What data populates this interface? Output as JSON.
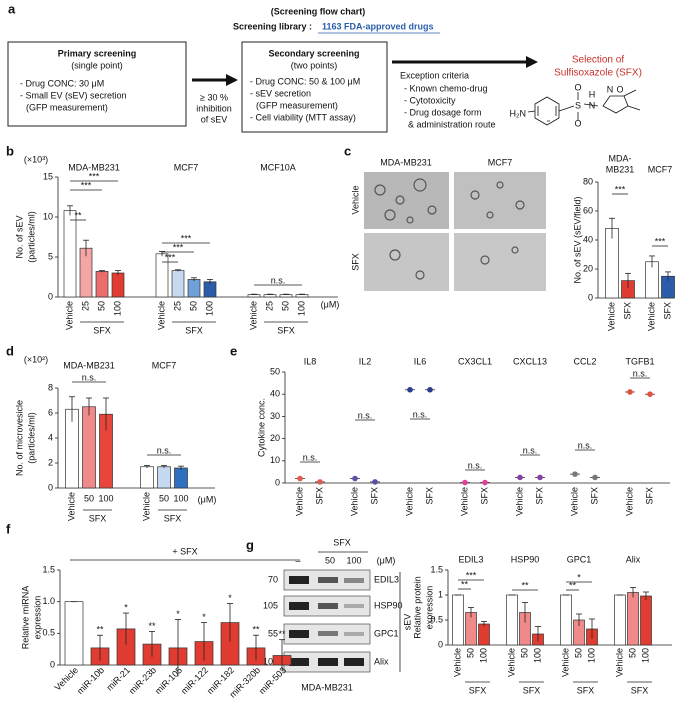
{
  "flowchart": {
    "panel": "a",
    "header": "(Screening flow chart)",
    "library_label": "Screening library :",
    "library": "1163 FDA-approved drugs",
    "primary": {
      "title": "Primary screening",
      "subtitle": "(single point)",
      "lines": [
        "- Drug CONC: 30 μM",
        "- Small EV (sEV) secretion",
        "(GFP measurement)"
      ]
    },
    "arrow1": [
      "≥ 30 %",
      "inhibition",
      "of sEV"
    ],
    "secondary": {
      "title": "Secondary screening",
      "subtitle": "(two points)",
      "lines": [
        "- Drug CONC: 50 & 100 μM",
        "- sEV secretion",
        "(GFP measurement)",
        "- Cell viability (MTT assay)"
      ]
    },
    "exception": [
      "Exception criteria",
      "- Known chemo-drug",
      "- Cytotoxicity",
      "- Drug dosage form",
      "& administration route"
    ],
    "selection": [
      "Selection of",
      "Sulfisoxazole (SFX)"
    ],
    "molecule_atoms": [
      "H₂N",
      "S",
      "O",
      "O",
      "H",
      "N",
      "N",
      "O"
    ]
  },
  "micrographs": {
    "panel": "c",
    "columns": [
      "MDA-MB231",
      "MCF7"
    ],
    "rows": [
      "Vehicle",
      "SFX"
    ]
  },
  "blot": {
    "panel": "g",
    "treatment": "SFX",
    "doses": [
      "–",
      "50",
      "100"
    ],
    "unit": "(μM)",
    "markers": [
      "70",
      "105",
      "55",
      "100"
    ],
    "proteins": [
      "EDIL3",
      "HSP90",
      "GPC1",
      "Alix"
    ],
    "fraction": "sEV",
    "cell_line": "MDA-MB231"
  },
  "chart_data": [
    {
      "type": "bar",
      "panel": "b",
      "scale_label": "(×10³)",
      "ylabel": [
        "No. of sEV",
        "(particles/ml)"
      ],
      "groups": [
        "MDA-MB231",
        "MCF7",
        "MCF10A"
      ],
      "brackets": [
        "SFX",
        "SFX",
        "SFX"
      ],
      "unit": "(μM)",
      "categories": [
        "Vehicle",
        "25",
        "50",
        "100",
        "Vehicle",
        "25",
        "50",
        "100",
        "Vehicle",
        "25",
        "50",
        "100"
      ],
      "values": [
        10.8,
        6.1,
        3.2,
        3.0,
        5.4,
        3.3,
        2.2,
        1.9,
        0.3,
        0.3,
        0.3,
        0.3
      ],
      "errors": [
        0.6,
        1.0,
        0.1,
        0.3,
        0.3,
        0.1,
        0.2,
        0.3,
        0.05,
        0.05,
        0.05,
        0.05
      ],
      "colors": [
        "#ffffff",
        "#f4a6a6",
        "#ec6d6d",
        "#e03c31",
        "#ffffff",
        "#c5d9f1",
        "#6fa0d8",
        "#2a5caa",
        "#ffffff",
        "#ffffff",
        "#ffffff",
        "#ffffff"
      ],
      "ylim": [
        0,
        15
      ],
      "yticks": [
        0,
        5,
        10,
        15
      ],
      "annotations": [
        "**",
        "***",
        "***",
        "***",
        "***",
        "***",
        "n.s."
      ]
    },
    {
      "type": "bar",
      "panel": "c",
      "ylabel": [
        "No. of sEV (sEV/field)"
      ],
      "groups": [
        [
          "MDA-",
          "MB231"
        ],
        [
          "MCF7"
        ]
      ],
      "categories": [
        "Vehicle",
        "SFX",
        "Vehicle",
        "SFX"
      ],
      "values": [
        48,
        12,
        25,
        15
      ],
      "errors": [
        7,
        5,
        4,
        3
      ],
      "colors": [
        "#ffffff",
        "#e03c31",
        "#ffffff",
        "#2a5caa"
      ],
      "ylim": [
        0,
        80
      ],
      "yticks": [
        0,
        20,
        40,
        60,
        80
      ],
      "annotations": [
        "***",
        "***"
      ]
    },
    {
      "type": "bar",
      "panel": "d",
      "scale_label": "(×10²)",
      "ylabel": [
        "No. of microvesicle",
        "(particles/ml)"
      ],
      "groups": [
        "MDA-MB231",
        "MCF7"
      ],
      "brackets": [
        "SFX",
        "SFX"
      ],
      "unit": "(μM)",
      "categories": [
        "Vehicle",
        "50",
        "100",
        "Vehicle",
        "50",
        "100"
      ],
      "values": [
        6.3,
        6.5,
        5.9,
        1.7,
        1.7,
        1.6
      ],
      "errors": [
        1.0,
        0.7,
        1.3,
        0.1,
        0.1,
        0.15
      ],
      "colors": [
        "#ffffff",
        "#f08a8a",
        "#e8463c",
        "#ffffff",
        "#c5d9f1",
        "#2f6fc0"
      ],
      "ylim": [
        0,
        8
      ],
      "yticks": [
        0,
        2,
        4,
        6,
        8
      ],
      "annotations": [
        "n.s.",
        "n.s."
      ]
    },
    {
      "type": "scatter",
      "panel": "e",
      "ylabel": [
        "Cytokine conc."
      ],
      "groups": [
        "IL8",
        "IL2",
        "IL6",
        "CX3CL1",
        "CXCL13",
        "CCL2",
        "TGFB1"
      ],
      "categories": [
        "Vehicle",
        "SFX",
        "Vehicle",
        "SFX",
        "Vehicle",
        "SFX",
        "Vehicle",
        "SFX",
        "Vehicle",
        "SFX",
        "Vehicle",
        "SFX",
        "Vehicle",
        "SFX"
      ],
      "values": [
        2,
        0.5,
        2,
        0.5,
        42,
        42,
        0.2,
        0.2,
        2.5,
        2.5,
        4,
        2.5,
        41,
        40
      ],
      "colors": [
        "#e05a4f",
        "#5a4fa8",
        "#2a3f8f",
        "#e0409a",
        "#8a3fa8",
        "#777777",
        "#e0503c"
      ],
      "ylim": [
        0,
        50
      ],
      "yticks": [
        0,
        10,
        20,
        30,
        40,
        50
      ],
      "annotations": [
        "n.s.",
        "n.s.",
        "n.s.",
        "n.s.",
        "n.s.",
        "n.s.",
        "n.s."
      ]
    },
    {
      "type": "bar",
      "panel": "f",
      "ylabel": [
        "Relative miRNA",
        "expression"
      ],
      "treatment": "+ SFX",
      "categories": [
        "Vehicle",
        "miR-10b",
        "miR-21",
        "miR-23b",
        "miR-105",
        "miR-122",
        "miR-182",
        "miR-320b",
        "miR-503"
      ],
      "values": [
        1,
        0.27,
        0.57,
        0.33,
        0.27,
        0.37,
        0.67,
        0.27,
        0.15
      ],
      "errors": [
        0,
        0.2,
        0.25,
        0.2,
        0.45,
        0.3,
        0.3,
        0.2,
        0.25
      ],
      "colors": [
        "#ffffff",
        "#e03c31",
        "#e03c31",
        "#e03c31",
        "#e03c31",
        "#e03c31",
        "#e03c31",
        "#e03c31",
        "#e03c31"
      ],
      "ylim": [
        0,
        1.5
      ],
      "yticks": [
        0,
        0.5,
        {
          "value": 1,
          "label": "1.0"
        },
        1.5
      ],
      "annotations": [
        "**",
        "*",
        "**",
        "*",
        "*",
        "*",
        "**",
        "**"
      ]
    },
    {
      "type": "bar",
      "panel": "g",
      "ylabel": [
        "Relative protein",
        "expression"
      ],
      "groups": [
        "EDIL3",
        "HSP90",
        "GPC1",
        "Alix"
      ],
      "brackets": [
        "SFX",
        "SFX",
        "SFX",
        "SFX"
      ],
      "categories": [
        "Vehicle",
        "50",
        "100",
        "Vehicle",
        "50",
        "100",
        "Vehicle",
        "50",
        "100",
        "Vehicle",
        "50",
        "100"
      ],
      "values": [
        1,
        0.65,
        0.42,
        1,
        0.65,
        0.22,
        1,
        0.5,
        0.32,
        1,
        1.05,
        0.98
      ],
      "errors": [
        0,
        0.1,
        0.05,
        0,
        0.2,
        0.15,
        0,
        0.12,
        0.2,
        0,
        0.1,
        0.08
      ],
      "colors": [
        "#ffffff",
        "#f08a8a",
        "#e03c31",
        "#ffffff",
        "#f08a8a",
        "#e03c31",
        "#ffffff",
        "#f08a8a",
        "#e03c31",
        "#ffffff",
        "#f08a8a",
        "#e03c31"
      ],
      "ylim": [
        0,
        1.5
      ],
      "yticks": [
        0,
        0.5,
        1,
        1.5
      ],
      "annotations": [
        "**",
        "***",
        "**",
        "**",
        "*"
      ]
    }
  ]
}
